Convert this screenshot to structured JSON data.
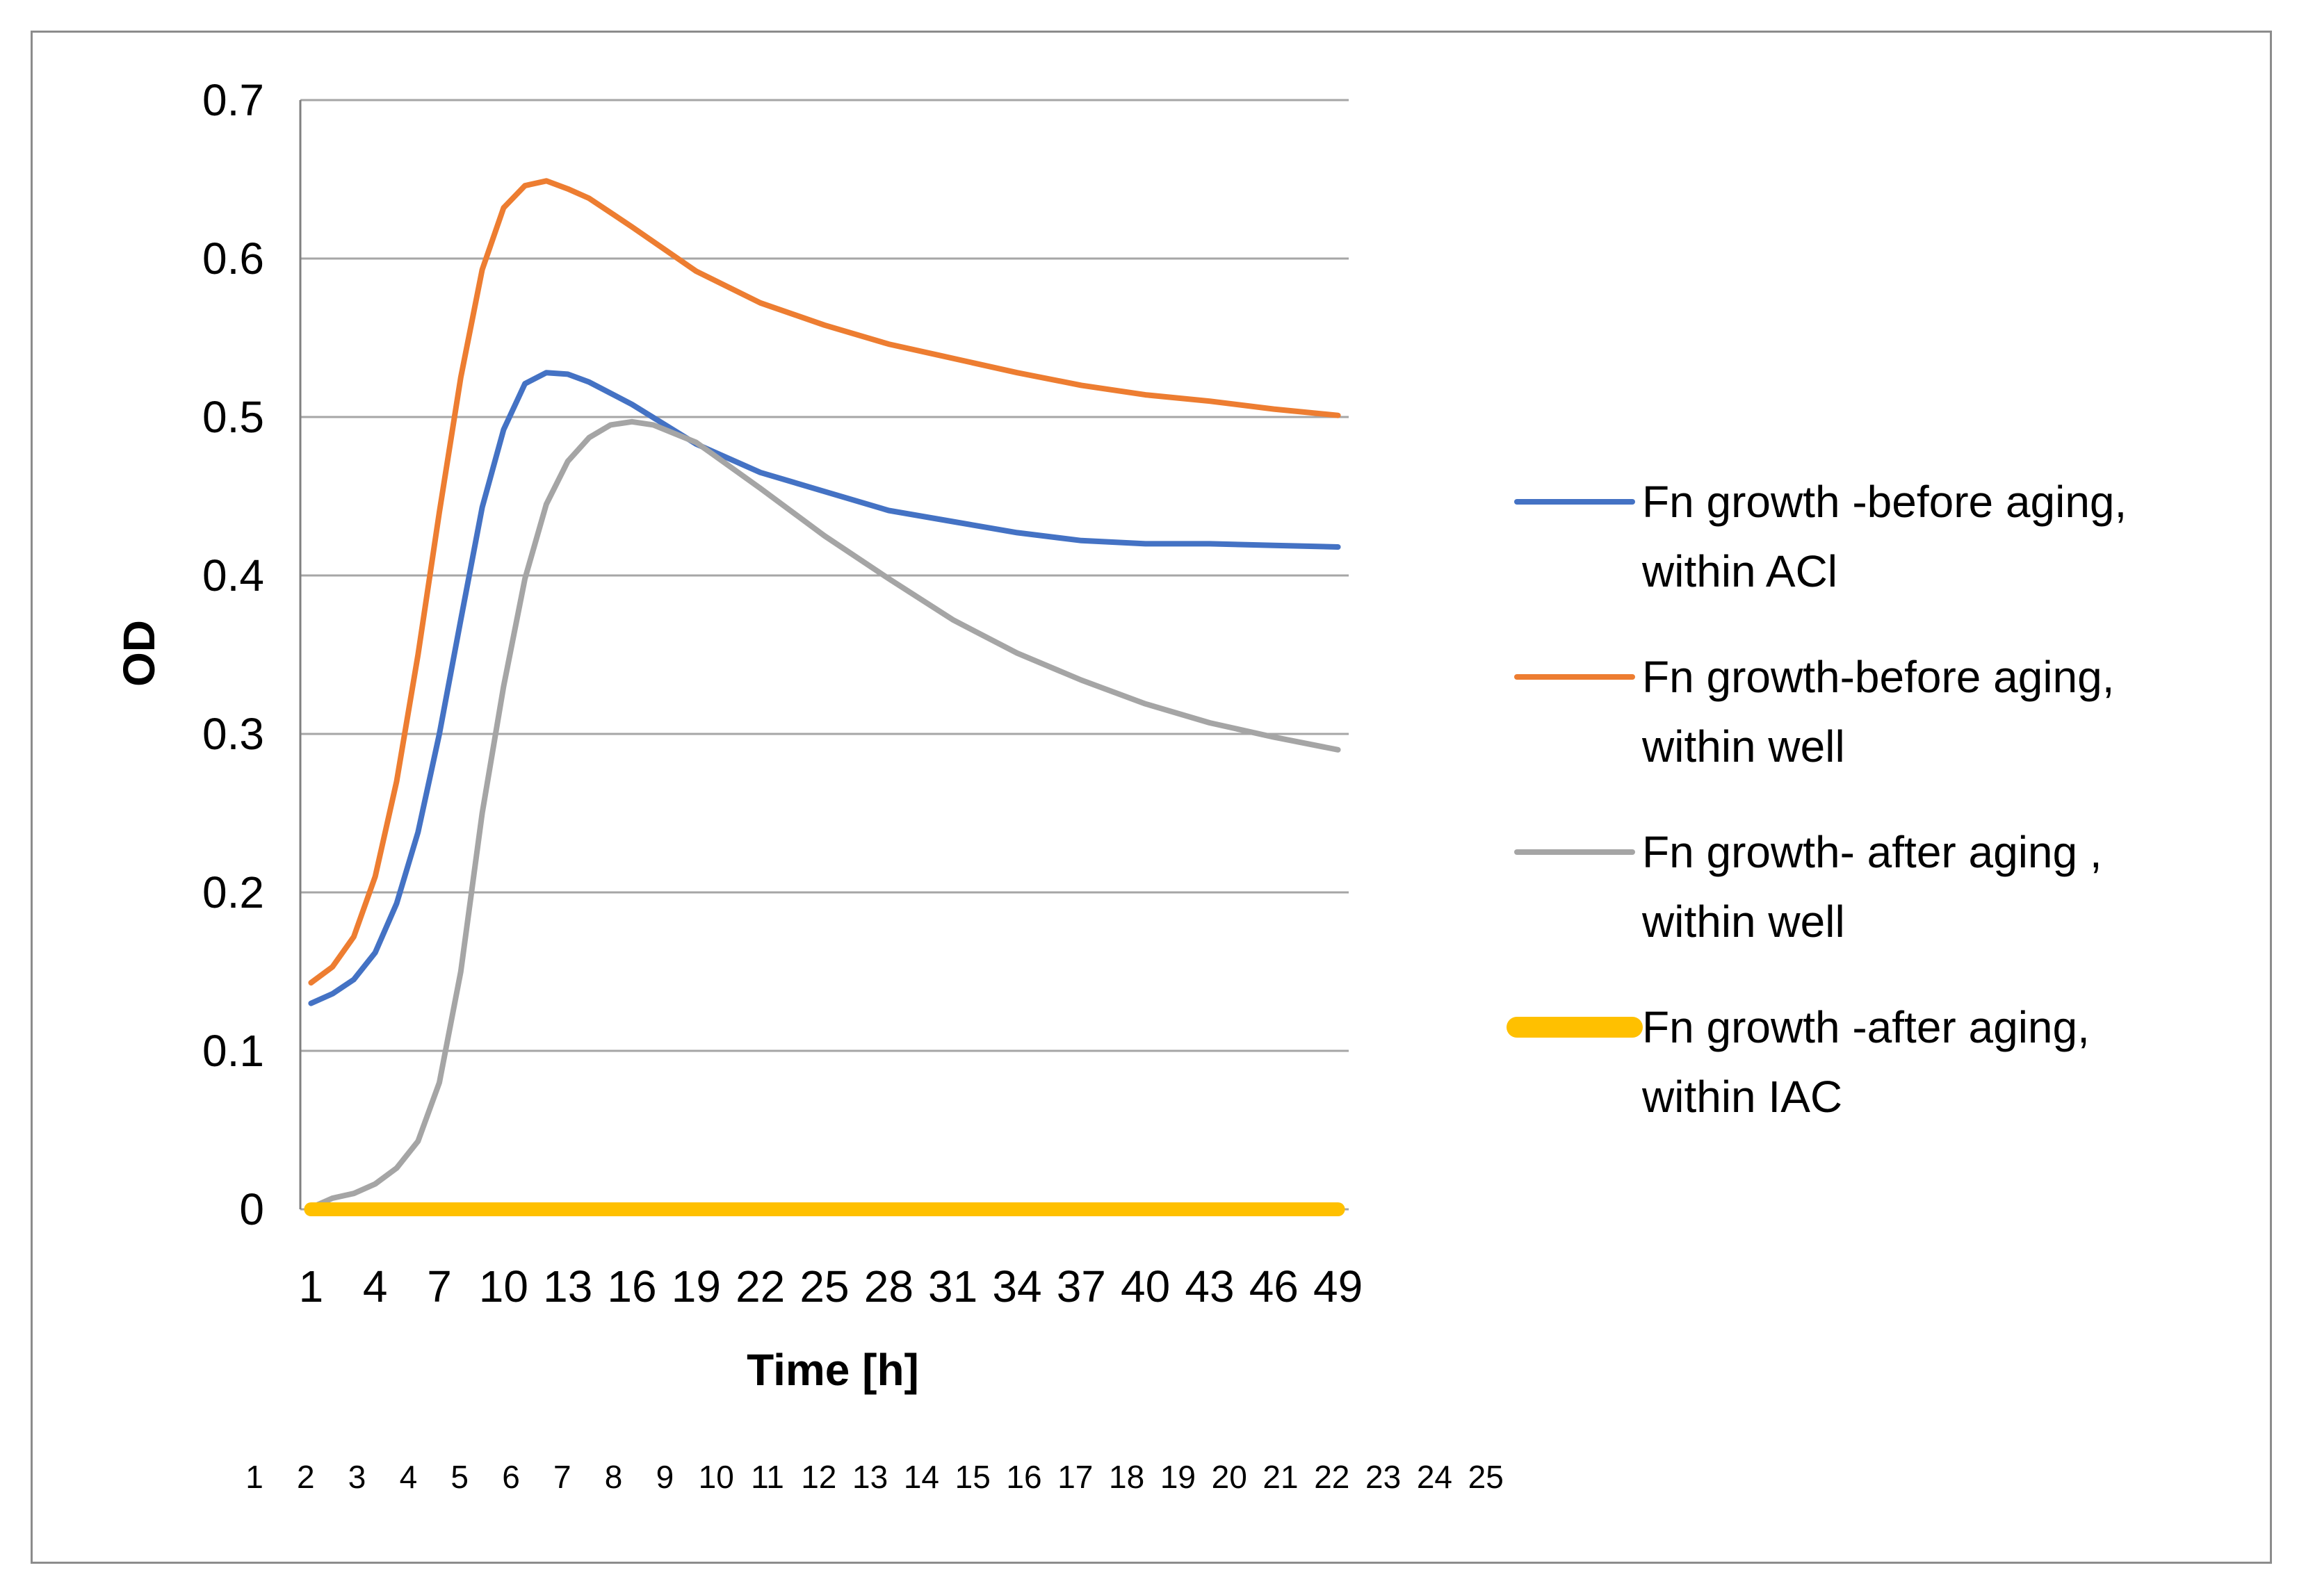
{
  "chart_data": {
    "type": "line",
    "title": "",
    "ylabel": "OD",
    "xlabel": "Time [h]",
    "ylim": [
      0,
      0.7
    ],
    "yticks": [
      "0",
      "0.1",
      "0.2",
      "0.3",
      "0.4",
      "0.5",
      "0.6",
      "0.7"
    ],
    "xtick_labels": [
      "1",
      "4",
      "7",
      "10",
      "13",
      "16",
      "19",
      "22",
      "25",
      "28",
      "31",
      "34",
      "37",
      "40",
      "43",
      "46",
      "49"
    ],
    "secondary_labels": [
      "1",
      "2",
      "3",
      "4",
      "5",
      "6",
      "7",
      "8",
      "9",
      "10",
      "11",
      "12",
      "13",
      "14",
      "15",
      "16",
      "17",
      "18",
      "19",
      "20",
      "21",
      "22",
      "23",
      "24",
      "25"
    ],
    "grid": true,
    "legend_position": "right",
    "series": [
      {
        "name": "Fn growth -before aging, within ACl",
        "color": "#4472C4",
        "x": [
          1,
          2,
          3,
          4,
          5,
          6,
          7,
          8,
          9,
          10,
          11,
          12,
          13,
          14,
          16,
          19,
          22,
          25,
          28,
          31,
          34,
          37,
          40,
          43,
          46,
          49
        ],
        "y": [
          0.13,
          0.136,
          0.145,
          0.162,
          0.193,
          0.238,
          0.3,
          0.372,
          0.443,
          0.492,
          0.521,
          0.528,
          0.527,
          0.522,
          0.508,
          0.483,
          0.465,
          0.453,
          0.441,
          0.434,
          0.427,
          0.422,
          0.42,
          0.42,
          0.419,
          0.418
        ]
      },
      {
        "name": "Fn growth-before aging, within well",
        "color": "#ED7D31",
        "x": [
          1,
          2,
          3,
          4,
          5,
          6,
          7,
          8,
          9,
          10,
          11,
          12,
          13,
          14,
          16,
          19,
          22,
          25,
          28,
          31,
          34,
          37,
          40,
          43,
          46,
          49
        ],
        "y": [
          0.143,
          0.153,
          0.172,
          0.21,
          0.27,
          0.35,
          0.44,
          0.525,
          0.593,
          0.632,
          0.646,
          0.649,
          0.644,
          0.638,
          0.62,
          0.592,
          0.572,
          0.558,
          0.546,
          0.537,
          0.528,
          0.52,
          0.514,
          0.51,
          0.505,
          0.501
        ]
      },
      {
        "name": "Fn growth- after aging , within well",
        "color": "#A5A5A5",
        "x": [
          1,
          2,
          3,
          4,
          5,
          6,
          7,
          8,
          9,
          10,
          11,
          12,
          13,
          14,
          15,
          16,
          17,
          19,
          22,
          25,
          28,
          31,
          34,
          37,
          40,
          43,
          46,
          49
        ],
        "y": [
          0.001,
          0.007,
          0.01,
          0.016,
          0.026,
          0.043,
          0.08,
          0.15,
          0.25,
          0.33,
          0.398,
          0.445,
          0.472,
          0.487,
          0.495,
          0.497,
          0.495,
          0.484,
          0.455,
          0.425,
          0.398,
          0.372,
          0.351,
          0.334,
          0.319,
          0.307,
          0.298,
          0.29
        ]
      },
      {
        "name": "Fn growth -after aging, within IAC",
        "color": "#FFC000",
        "x": [
          1,
          49
        ],
        "y": [
          0,
          0
        ]
      }
    ]
  }
}
